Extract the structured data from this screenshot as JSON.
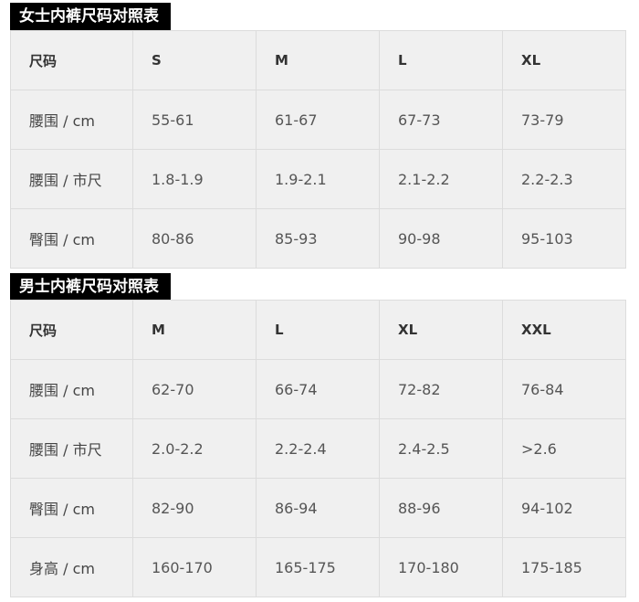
{
  "tables": [
    {
      "title": "女士内裤尺码对照表",
      "header": [
        "尺码",
        "S",
        "M",
        "L",
        "XL"
      ],
      "rows": [
        [
          "腰围 / cm",
          "55-61",
          "61-67",
          "67-73",
          "73-79"
        ],
        [
          "腰围 / 市尺",
          "1.8-1.9",
          "1.9-2.1",
          "2.1-2.2",
          "2.2-2.3"
        ],
        [
          "臀围 / cm",
          "80-86",
          "85-93",
          "90-98",
          "95-103"
        ]
      ]
    },
    {
      "title": "男士内裤尺码对照表",
      "header": [
        "尺码",
        "M",
        "L",
        "XL",
        "XXL"
      ],
      "rows": [
        [
          "腰围 / cm",
          "62-70",
          "66-74",
          "72-82",
          "76-84"
        ],
        [
          "腰围 / 市尺",
          "2.0-2.2",
          "2.2-2.4",
          "2.4-2.5",
          ">2.6"
        ],
        [
          "臀围 / cm",
          "82-90",
          "86-94",
          "88-96",
          "94-102"
        ],
        [
          "身高 / cm",
          "160-170",
          "165-175",
          "170-180",
          "175-185"
        ]
      ]
    }
  ]
}
